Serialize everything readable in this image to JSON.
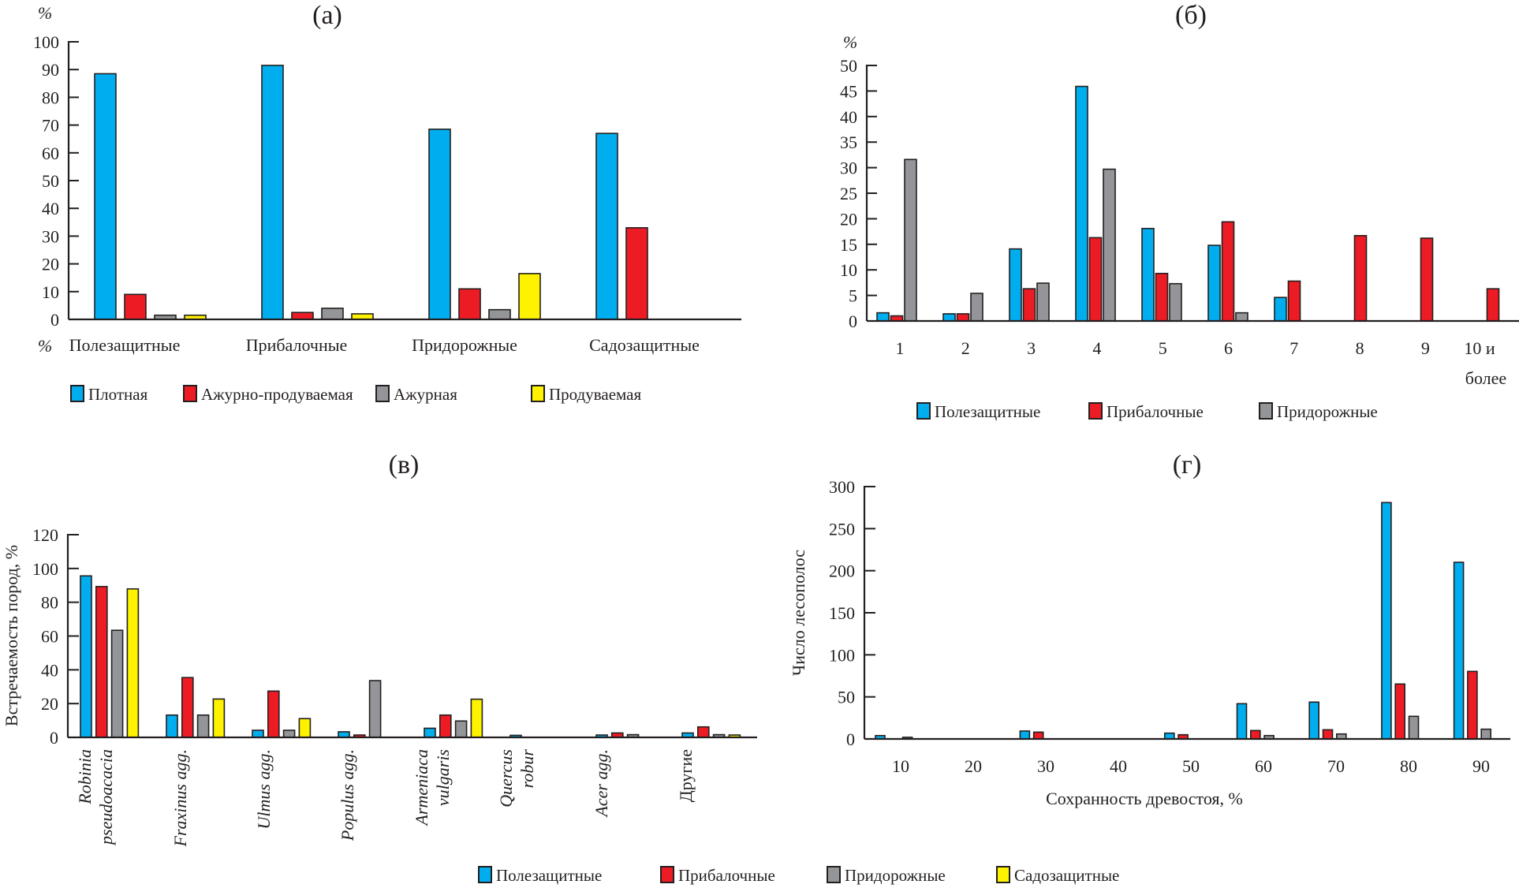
{
  "colors": {
    "blue": "#00aeef",
    "red": "#ed1c24",
    "gray": "#939598",
    "yellow": "#fff200",
    "stroke": "#231f20"
  },
  "chart_data": [
    {
      "id": "a",
      "type": "bar",
      "title": "(а)",
      "ylabel": "%",
      "xlabel_unit": "%",
      "ylim": [
        0,
        100
      ],
      "yticks": [
        0,
        10,
        20,
        30,
        40,
        50,
        60,
        70,
        80,
        90,
        100
      ],
      "categories": [
        "Полезащитные",
        "Прибалочные",
        "Придорожные",
        "Садозащитные"
      ],
      "legend_position": "bottom",
      "series": [
        {
          "name": "Плотная",
          "color": "blue",
          "values": [
            88.5,
            91.5,
            68.5,
            67
          ]
        },
        {
          "name": "Ажурно-продуваемая",
          "color": "red",
          "values": [
            9,
            2.5,
            11,
            33
          ]
        },
        {
          "name": "Ажурная",
          "color": "gray",
          "values": [
            1.5,
            4,
            3.5,
            0
          ]
        },
        {
          "name": "Продуваемая",
          "color": "yellow",
          "values": [
            1.5,
            2,
            16.5,
            0
          ]
        }
      ]
    },
    {
      "id": "b",
      "type": "bar",
      "title": "(б)",
      "ylabel": "%",
      "ylim": [
        0,
        50
      ],
      "yticks": [
        0,
        5,
        10,
        15,
        20,
        25,
        30,
        35,
        40,
        45,
        50
      ],
      "categories": [
        "1",
        "2",
        "3",
        "4",
        "5",
        "6",
        "7",
        "8",
        "9",
        "10 и более"
      ],
      "category_lines": [
        [
          "1"
        ],
        [
          "2"
        ],
        [
          "3"
        ],
        [
          "4"
        ],
        [
          "5"
        ],
        [
          "6"
        ],
        [
          "7"
        ],
        [
          "8"
        ],
        [
          "9"
        ],
        [
          "10 и",
          "более"
        ]
      ],
      "legend_position": "bottom",
      "series": [
        {
          "name": "Полезащитные",
          "color": "blue",
          "values": [
            1.6,
            1.4,
            14.1,
            45.9,
            18.1,
            14.8,
            4.6,
            0,
            0,
            0
          ]
        },
        {
          "name": "Прибалочные",
          "color": "red",
          "values": [
            1.0,
            1.4,
            6.3,
            16.3,
            9.3,
            19.4,
            7.8,
            16.7,
            16.2,
            6.3
          ]
        },
        {
          "name": "Придорожные",
          "color": "gray",
          "values": [
            31.6,
            5.4,
            7.4,
            29.7,
            7.3,
            1.6,
            0,
            0,
            0,
            0
          ]
        }
      ]
    },
    {
      "id": "v",
      "type": "bar",
      "title": "(в)",
      "ylabel": "Встречаемость пород, %",
      "ylim": [
        0,
        120
      ],
      "yticks": [
        0,
        20,
        40,
        60,
        80,
        100,
        120
      ],
      "categories": [
        "Robinia pseudoacacia",
        "Fraxinus agg.",
        "Ulmus agg.",
        "Populus agg.",
        "Armeniaca vulgaris",
        "Quercus robur",
        "Acer agg.",
        "Другие"
      ],
      "category_lines": [
        [
          "Robinia",
          "pseudoacacia"
        ],
        [
          "Fraxinus agg."
        ],
        [
          "Ulmus agg."
        ],
        [
          "Populus agg."
        ],
        [
          "Armeniaca",
          "vulgaris"
        ],
        [
          "Quercus",
          "robur"
        ],
        [
          "Acer agg."
        ],
        [
          "Другие"
        ]
      ],
      "category_italic": [
        true,
        true,
        true,
        true,
        true,
        true,
        true,
        false
      ],
      "legend_position": "bottom",
      "series": [
        {
          "name": "Полезащитные",
          "color": "blue",
          "values": [
            95.6,
            13.2,
            4.2,
            3.3,
            5.4,
            1.2,
            1.4,
            2.6
          ]
        },
        {
          "name": "Прибалочные",
          "color": "red",
          "values": [
            89.3,
            35.4,
            27.4,
            1.4,
            13.2,
            0,
            2.6,
            6.2
          ]
        },
        {
          "name": "Придорожные",
          "color": "gray",
          "values": [
            63.4,
            13.2,
            4.2,
            33.6,
            9.7,
            0,
            1.6,
            1.6
          ]
        },
        {
          "name": "Садозащитные",
          "color": "yellow",
          "values": [
            87.9,
            22.7,
            11.1,
            0,
            22.6,
            0,
            0,
            1.4
          ]
        }
      ]
    },
    {
      "id": "g",
      "type": "bar",
      "title": "(г)",
      "ylabel": "Число лесополос",
      "xlabel": "Сохранность древостоя, %",
      "ylim": [
        0,
        300
      ],
      "yticks": [
        0,
        50,
        100,
        150,
        200,
        250,
        300
      ],
      "categories": [
        "10",
        "20",
        "30",
        "40",
        "50",
        "60",
        "70",
        "80",
        "90"
      ],
      "legend_position": "bottom",
      "series": [
        {
          "name": "Полезащитные",
          "color": "blue",
          "values": [
            4,
            0,
            9.4,
            0,
            6.9,
            41.9,
            43.8,
            281,
            210
          ]
        },
        {
          "name": "Прибалочные",
          "color": "red",
          "values": [
            0,
            0,
            8.1,
            0,
            5,
            10,
            10.9,
            65.3,
            80.3
          ]
        },
        {
          "name": "Придорожные",
          "color": "gray",
          "values": [
            2,
            0,
            0,
            0,
            0,
            4,
            5.9,
            26.9,
            11.6
          ]
        }
      ]
    }
  ],
  "legends": {
    "a": [
      "Плотная",
      "Ажурно-продуваемая",
      "Ажурная",
      "Продуваемая"
    ],
    "b": [
      "Полезащитные",
      "Прибалочные",
      "Придорожные"
    ],
    "bottom": [
      "Полезащитные",
      "Прибалочные",
      "Придорожные",
      "Садозащитные"
    ]
  }
}
